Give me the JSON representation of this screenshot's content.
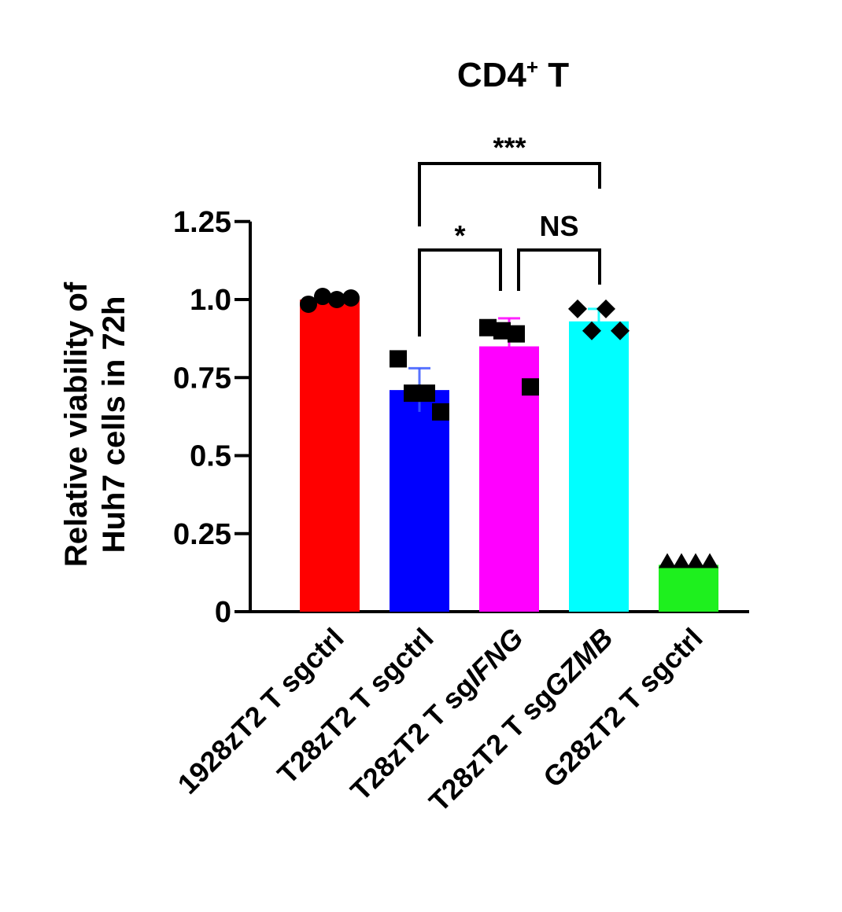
{
  "chart_data": {
    "type": "bar",
    "title": "CD4",
    "title_superscript": "+",
    "title_suffix": " T",
    "ylabel_lines": [
      "Relative viability of",
      "Huh7 cells in 72h"
    ],
    "xlabel": "",
    "ylim": [
      0,
      1.25
    ],
    "yticks": [
      {
        "value": 0,
        "label": "0"
      },
      {
        "value": 0.25,
        "label": "0.25"
      },
      {
        "value": 0.5,
        "label": "0.5"
      },
      {
        "value": 0.75,
        "label": "0.75"
      },
      {
        "value": 1.0,
        "label": "1.0"
      },
      {
        "value": 1.25,
        "label": "1.25"
      }
    ],
    "grid": false,
    "legend": "none",
    "categories": [
      {
        "parts": [
          {
            "text": "1928zT2 T sgctrl",
            "italic": false
          }
        ]
      },
      {
        "parts": [
          {
            "text": "T28zT2 T sgctrl",
            "italic": false
          }
        ]
      },
      {
        "parts": [
          {
            "text": "T28zT2 T sg",
            "italic": false
          },
          {
            "text": "IFNG",
            "italic": true
          }
        ]
      },
      {
        "parts": [
          {
            "text": "T28zT2 T sg",
            "italic": false
          },
          {
            "text": "GZMB",
            "italic": true
          }
        ]
      },
      {
        "parts": [
          {
            "text": "G28zT2 T sgctrl",
            "italic": false
          }
        ]
      }
    ],
    "bars": [
      {
        "mean": 1.0,
        "error": 0.0,
        "color": "#ff0000",
        "marker": "circle",
        "points": [
          0.985,
          1.01,
          1.0,
          1.005
        ]
      },
      {
        "mean": 0.71,
        "error": 0.07,
        "color": "#0000ff",
        "marker": "square",
        "points": [
          0.81,
          0.7,
          0.7,
          0.64
        ]
      },
      {
        "mean": 0.85,
        "error": 0.09,
        "color": "#ff00ff",
        "marker": "square",
        "points": [
          0.91,
          0.9,
          0.89,
          0.72
        ]
      },
      {
        "mean": 0.93,
        "error": 0.04,
        "color": "#00ffff",
        "marker": "diamond",
        "points": [
          0.97,
          0.9,
          0.97,
          0.9
        ]
      },
      {
        "mean": 0.15,
        "error": 0.0,
        "color": "#1ef01e",
        "marker": "triangle",
        "points": [
          0.16,
          0.16,
          0.16,
          0.16
        ]
      }
    ],
    "significance": [
      {
        "from": 1,
        "to": 3,
        "label": "***"
      },
      {
        "from": 1,
        "to": 2,
        "label": "*"
      },
      {
        "from": 2,
        "to": 3,
        "label": "NS"
      }
    ]
  }
}
